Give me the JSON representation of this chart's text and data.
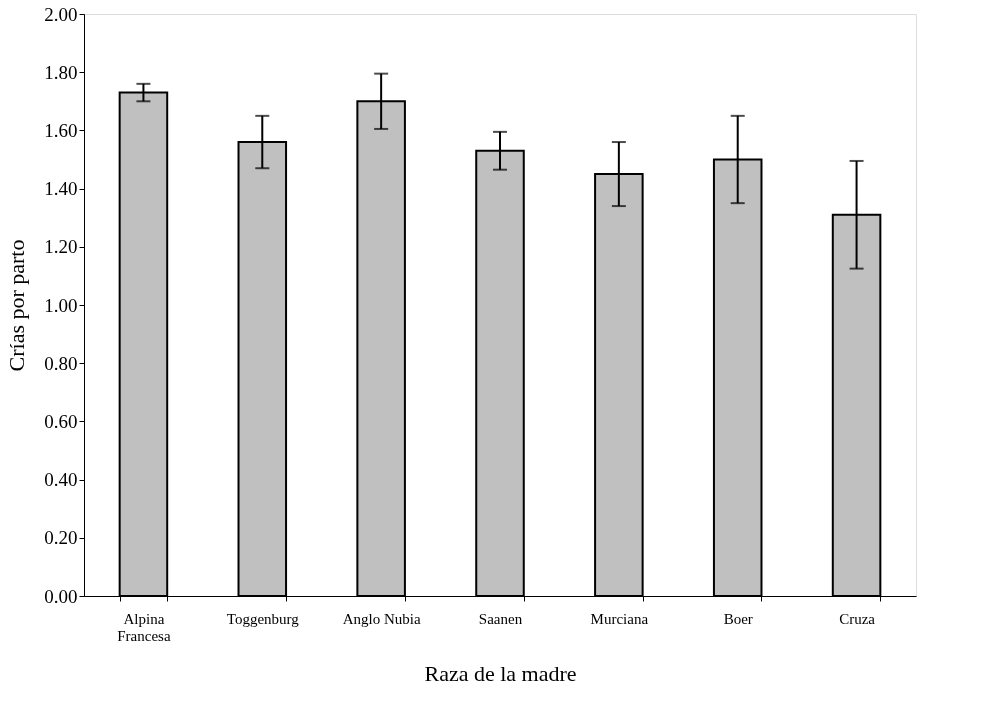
{
  "chart_data": {
    "type": "bar",
    "xlabel": "Raza de la madre",
    "ylabel": "Crías por parto",
    "categories": [
      "Alpina Francesa",
      "Toggenburg",
      "Anglo Nubia",
      "Saanen",
      "Murciana",
      "Boer",
      "Cruza"
    ],
    "values": [
      1.73,
      1.56,
      1.7,
      1.53,
      1.45,
      1.5,
      1.31
    ],
    "errors": [
      0.03,
      0.09,
      0.095,
      0.065,
      0.11,
      0.15,
      0.185
    ],
    "color": "#c0c0c0",
    "ylim": [
      0,
      2
    ],
    "yticks": [
      {
        "value": 0,
        "label": "0.00"
      },
      {
        "value": 0.2,
        "label": "0.20"
      },
      {
        "value": 0.4,
        "label": "0.40"
      },
      {
        "value": 0.6,
        "label": "0.60"
      },
      {
        "value": 0.8,
        "label": "0.80"
      },
      {
        "value": 1.0,
        "label": "1.00"
      },
      {
        "value": 1.2,
        "label": "1.20"
      },
      {
        "value": 1.4,
        "label": "1.40"
      },
      {
        "value": 1.6,
        "label": "1.60"
      },
      {
        "value": 1.8,
        "label": "1.80"
      },
      {
        "value": 2.0,
        "label": "2.00"
      }
    ],
    "grid": false
  }
}
